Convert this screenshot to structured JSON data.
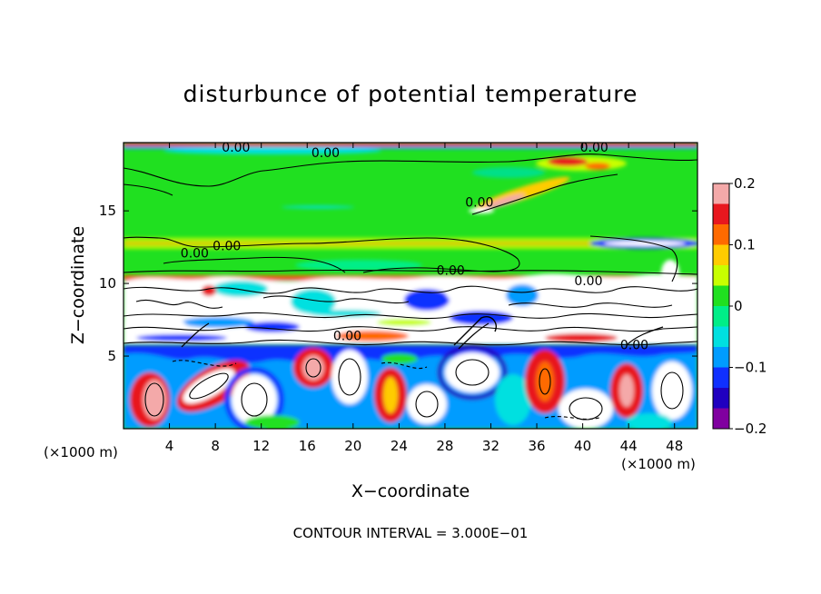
{
  "chart_data": {
    "type": "heatmap",
    "title": "disturbunce of potential temperature",
    "xlabel": "X−coordinate",
    "ylabel": "Z−coordinate",
    "x_unit_left": "(×1000 m)",
    "x_unit_right": "(×1000 m)",
    "xlim": [
      0,
      50
    ],
    "ylim": [
      0,
      19.7
    ],
    "xticks": [
      4,
      8,
      12,
      16,
      20,
      24,
      28,
      32,
      36,
      40,
      44,
      48
    ],
    "xtick_labels": [
      "4",
      "8",
      "12",
      "16",
      "20",
      "24",
      "28",
      "32",
      "36",
      "40",
      "44",
      "48"
    ],
    "yticks": [
      5,
      10,
      15
    ],
    "ytick_labels": [
      "5",
      "10",
      "15"
    ],
    "colorbar": {
      "range": [
        -0.2,
        0.2
      ],
      "ticks": [
        0.2,
        0.1,
        0,
        -0.1,
        -0.2
      ],
      "tick_labels": [
        "0.2",
        "0.1",
        "0",
        "−0.1",
        "−0.2"
      ],
      "colors": [
        "#f4a9a9",
        "#e8171e",
        "#ff6a00",
        "#ffcc00",
        "#c8ff00",
        "#20e020",
        "#00ee88",
        "#00e0e0",
        "#009cff",
        "#1030ff",
        "#2000c0",
        "#8000a0"
      ]
    },
    "contour_labels": [
      {
        "text": "0.00",
        "x": 9.8,
        "y": 19.4
      },
      {
        "text": "0.00",
        "x": 17.6,
        "y": 19.0
      },
      {
        "text": "0.00",
        "x": 41.0,
        "y": 19.4
      },
      {
        "text": "0.00",
        "x": 31.0,
        "y": 15.6
      },
      {
        "text": "0.00",
        "x": 9.0,
        "y": 12.6
      },
      {
        "text": "0.00",
        "x": 6.2,
        "y": 12.1
      },
      {
        "text": "0.00",
        "x": 28.5,
        "y": 10.9
      },
      {
        "text": "0.00",
        "x": 40.5,
        "y": 10.2
      },
      {
        "text": "0.00",
        "x": 19.5,
        "y": 6.4
      },
      {
        "text": "0.00",
        "x": 44.5,
        "y": 5.8
      }
    ],
    "contour_interval_text": "CONTOUR INTERVAL = 3.000E−01",
    "grid": false,
    "legend": "right"
  }
}
